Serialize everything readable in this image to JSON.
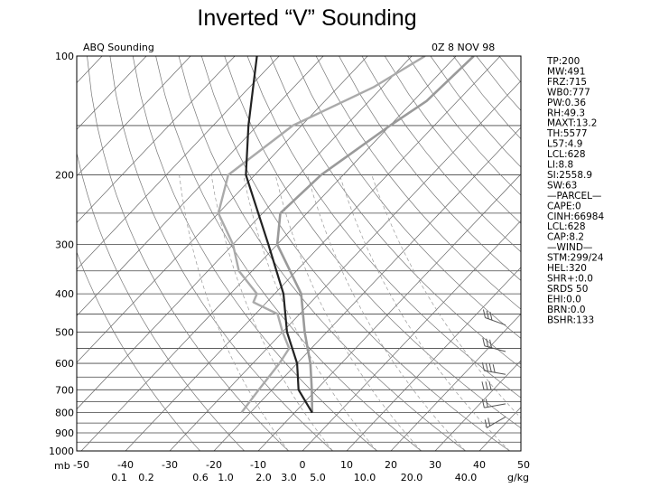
{
  "slide": {
    "title": "Inverted “V” Sounding"
  },
  "plot": {
    "station_label": "ABQ Sounding",
    "time_label": "0Z  8 NOV 98",
    "y_axis_label": "mb",
    "x_axis_unit_label": "g/kg"
  },
  "colors": {
    "grid": "#444444",
    "skew_lines": "#666666",
    "dry_adiabats": "#777777",
    "dashed_lines": "#999999",
    "temperature": "#9a9a9a",
    "dewpoint": "#aaaaaa",
    "parcel": "#222222"
  },
  "indices": [
    "TP:200",
    "MW:491",
    "FRZ:715",
    "WB0:777",
    "PW:0.36",
    "RH:49.3",
    "MAXT:13.2",
    "TH:5577",
    "L57:4.9",
    "LCL:628",
    "LI:8.8",
    "SI:2558.9",
    "SW:63",
    "—PARCEL—",
    "CAPE:0",
    "CINH:66984",
    "LCL:628",
    "CAP:8.2",
    "—WIND—",
    "STM:299/24",
    "HEL:320",
    "SHR+:0.0",
    "SRDS 50",
    "EHI:0.0",
    "BRN:0.0",
    "BSHR:133"
  ],
  "chart_data": {
    "type": "skew-t log-p sounding",
    "pressure_axis": {
      "ticks": [
        100,
        200,
        300,
        400,
        500,
        600,
        700,
        800,
        900,
        1000
      ],
      "tick_labels": [
        "100",
        "200",
        "300",
        "400",
        "500",
        "600",
        "700",
        "800",
        "900",
        "1000"
      ],
      "range": [
        1000,
        100
      ],
      "scale": "log"
    },
    "temperature_axis": {
      "ticks": [
        -50,
        -40,
        -30,
        -20,
        -10,
        0,
        10,
        20,
        30,
        40,
        50
      ],
      "tick_labels": [
        "-50",
        "-40",
        "-30",
        "-20",
        "-10",
        "0",
        "10",
        "20",
        "30",
        "40",
        "50"
      ]
    },
    "mixing_ratio_labels": [
      "0.1",
      "0.2",
      "0.6",
      "1.0",
      "2.0",
      "3.0",
      "5.0",
      "10.0",
      "20.0",
      "40.0"
    ],
    "series": [
      {
        "key": "temperature",
        "points": [
          [
            800,
            -6
          ],
          [
            700,
            -11
          ],
          [
            600,
            -17
          ],
          [
            500,
            -25
          ],
          [
            400,
            -34
          ],
          [
            300,
            -50
          ],
          [
            250,
            -56
          ],
          [
            200,
            -55
          ],
          [
            150,
            -50
          ],
          [
            130,
            -47
          ],
          [
            100,
            -46
          ]
        ]
      },
      {
        "key": "dewpoint",
        "points": [
          [
            800,
            -22
          ],
          [
            700,
            -23
          ],
          [
            600,
            -24
          ],
          [
            550,
            -25
          ],
          [
            500,
            -30
          ],
          [
            450,
            -35
          ],
          [
            420,
            -43
          ],
          [
            400,
            -44
          ],
          [
            350,
            -53
          ],
          [
            300,
            -60
          ],
          [
            250,
            -70
          ],
          [
            200,
            -76
          ],
          [
            150,
            -72
          ],
          [
            120,
            -62
          ],
          [
            100,
            -57
          ]
        ]
      },
      {
        "key": "parcel",
        "points": [
          [
            800,
            -6
          ],
          [
            700,
            -14
          ],
          [
            600,
            -20
          ],
          [
            500,
            -29
          ],
          [
            400,
            -38
          ],
          [
            300,
            -52
          ],
          [
            200,
            -72
          ],
          [
            150,
            -82
          ],
          [
            100,
            -95
          ]
        ]
      }
    ],
    "wind_barbs": [
      {
        "pressure": 480,
        "direction": 290,
        "speed_kt": 25
      },
      {
        "pressure": 560,
        "direction": 285,
        "speed_kt": 25
      },
      {
        "pressure": 640,
        "direction": 280,
        "speed_kt": 35
      },
      {
        "pressure": 700,
        "direction": 270,
        "speed_kt": 30
      },
      {
        "pressure": 760,
        "direction": 260,
        "speed_kt": 20
      },
      {
        "pressure": 820,
        "direction": 240,
        "speed_kt": 15
      }
    ]
  }
}
